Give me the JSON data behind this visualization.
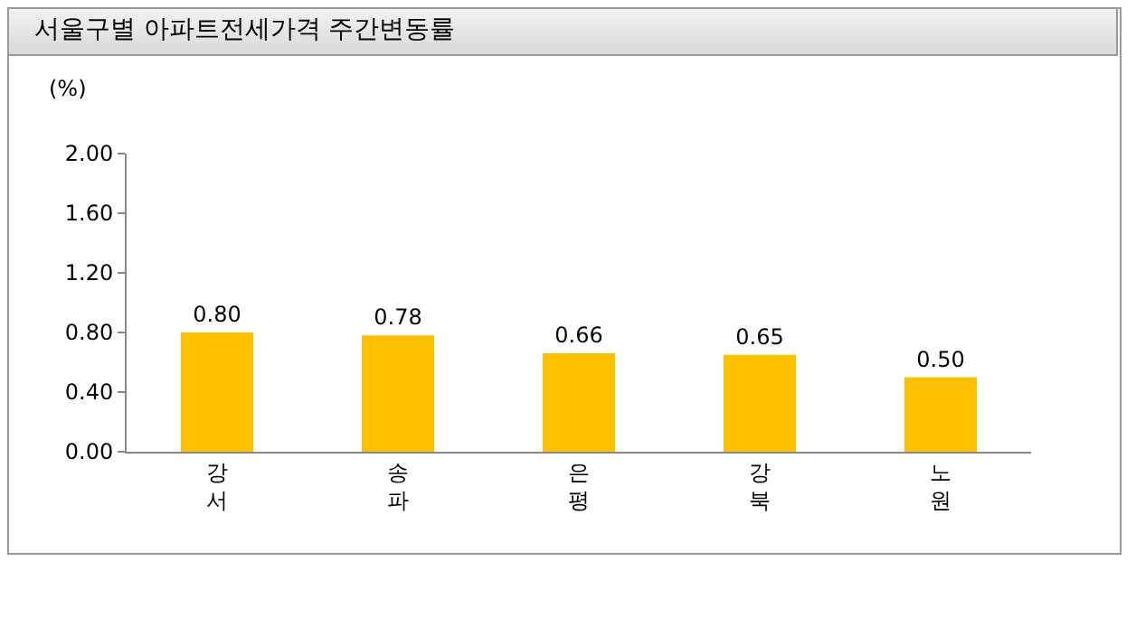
{
  "chart_data": {
    "type": "bar",
    "title": "서울구별 아파트전세가격 주간변동률",
    "ylabel": "(%)",
    "categories": [
      "강서",
      "송파",
      "은평",
      "강북",
      "노원"
    ],
    "values": [
      0.8,
      0.78,
      0.66,
      0.65,
      0.5
    ],
    "color": "#ffc000",
    "ylim": [
      0,
      2
    ],
    "yticks": [
      {
        "value": 0,
        "label": "0.00"
      },
      {
        "value": 0.4,
        "label": "0.40"
      },
      {
        "value": 0.8,
        "label": "0.80"
      },
      {
        "value": 1.2,
        "label": "1.20"
      },
      {
        "value": 1.6,
        "label": "1.60"
      },
      {
        "value": 2,
        "label": "2.00"
      }
    ],
    "value_labels": [
      "0.80",
      "0.78",
      "0.66",
      "0.65",
      "0.50"
    ],
    "grid": false
  }
}
